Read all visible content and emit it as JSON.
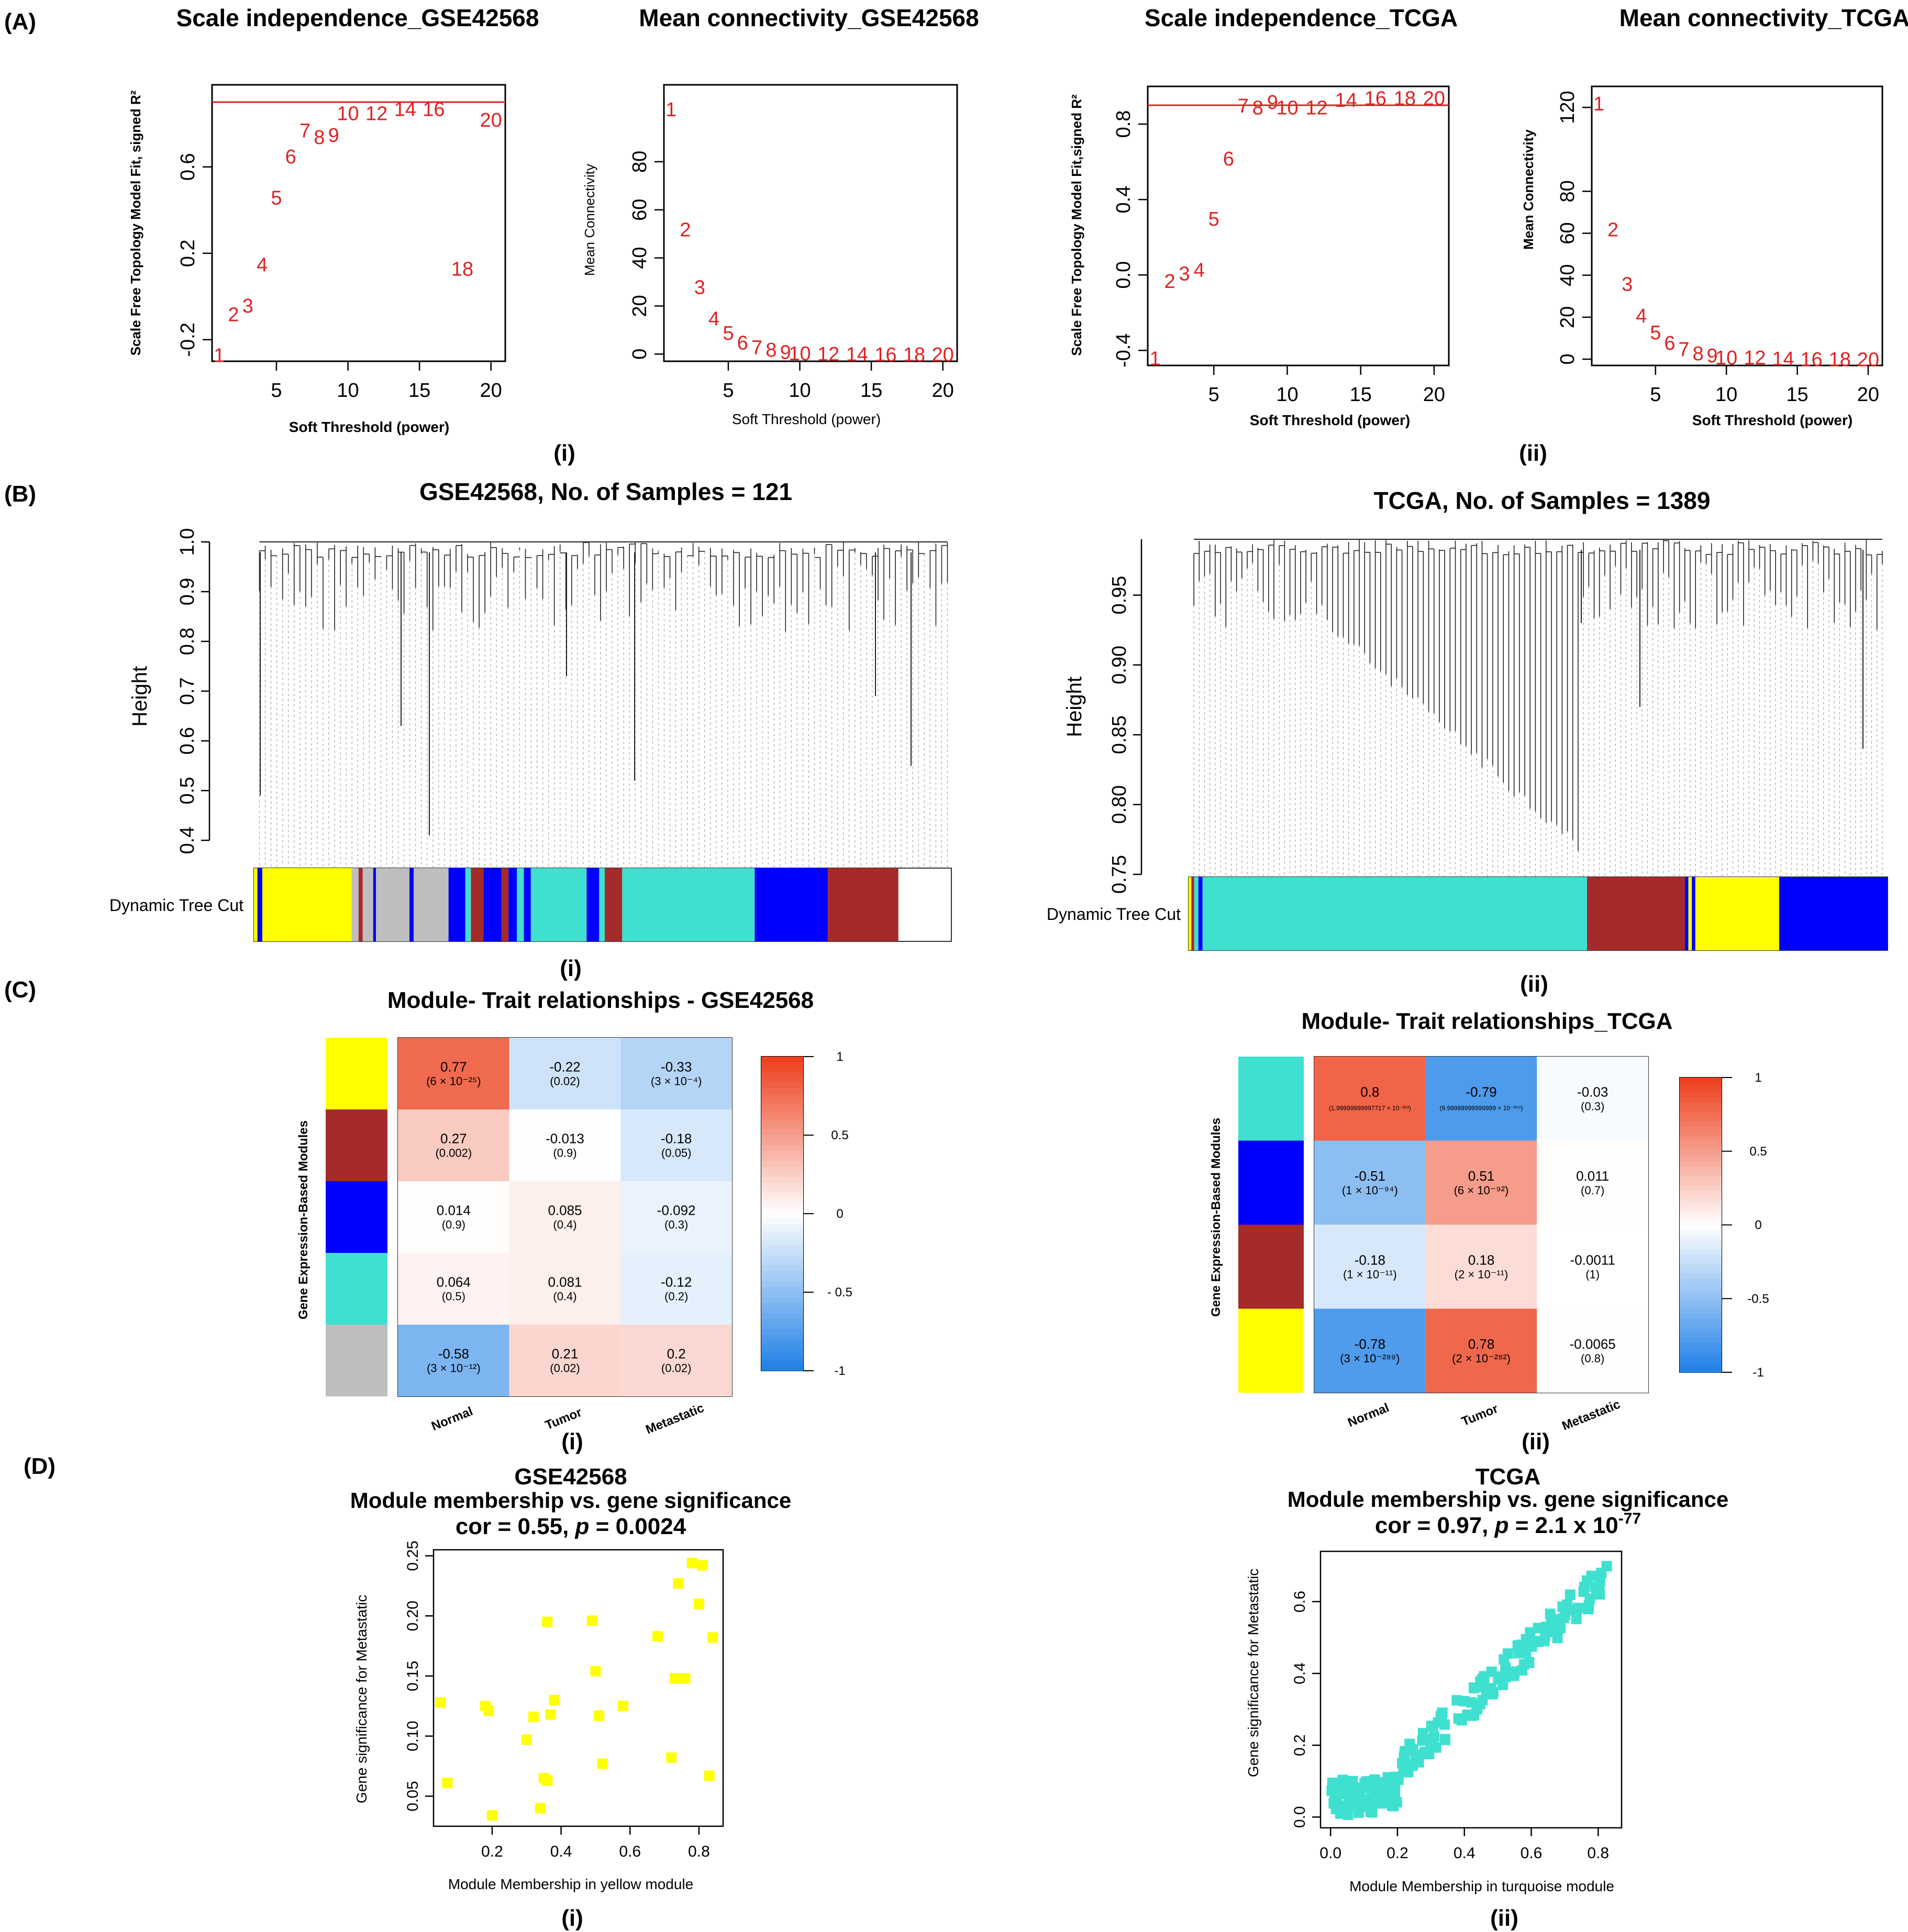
{
  "figure": {
    "panel_letters": [
      "(A)",
      "(B)",
      "(C)",
      "(D)"
    ],
    "subpanel_labels": [
      "(i)",
      "(ii)"
    ]
  },
  "colors": {
    "red": "#dd2222",
    "yellow": "#ffff00",
    "brown": "#a52a2a",
    "blue": "#0000ff",
    "turquoise": "#40e0d0",
    "grey": "#bebebe",
    "heat_neg": "#1f7fe6",
    "heat_mid": "#ffffff",
    "heat_pos": "#ec3d1a"
  },
  "chart_data": [
    {
      "id": "A_i_scale",
      "type": "scatter",
      "title": "Scale independence_GSE42568",
      "xlabel": "Soft Threshold (power)",
      "ylabel": "Scale Free Topology Model Fit, signed R²",
      "xticks": [
        "5",
        "10",
        "15",
        "20"
      ],
      "yticks": [
        "-0.2",
        "0.2",
        "0.6"
      ],
      "xlim": [
        0.5,
        21
      ],
      "ylim": [
        -0.3,
        0.98
      ],
      "hline": 0.9,
      "x": [
        1,
        2,
        3,
        4,
        5,
        6,
        7,
        8,
        9,
        10,
        12,
        14,
        16,
        18,
        20
      ],
      "y": [
        -0.27,
        -0.08,
        -0.04,
        0.15,
        0.46,
        0.65,
        0.77,
        0.74,
        0.75,
        0.85,
        0.85,
        0.87,
        0.87,
        0.13,
        0.82
      ]
    },
    {
      "id": "A_i_conn",
      "type": "scatter",
      "title": "Mean connectivity_GSE42568",
      "xlabel": "Soft Threshold (power)",
      "ylabel": "Mean Connectivity",
      "xticks": [
        "5",
        "10",
        "15",
        "20"
      ],
      "yticks": [
        "0",
        "20",
        "40",
        "60",
        "80"
      ],
      "xlim": [
        0.5,
        21
      ],
      "ylim": [
        -3,
        112
      ],
      "x": [
        1,
        2,
        3,
        4,
        5,
        6,
        7,
        8,
        9,
        10,
        12,
        14,
        16,
        18,
        20
      ],
      "y": [
        102,
        52,
        28,
        15,
        9,
        5,
        3,
        2,
        1,
        0.5,
        0.3,
        0.2,
        0.1,
        0.1,
        0.1
      ]
    },
    {
      "id": "A_ii_scale",
      "type": "scatter",
      "title": "Scale independence_TCGA",
      "xlabel": "Soft Threshold (power)",
      "ylabel": "Scale Free Topology Model Fit,signed R²",
      "xticks": [
        "5",
        "10",
        "15",
        "20"
      ],
      "yticks": [
        "-0.4",
        "0.0",
        "0.4",
        "0.8"
      ],
      "xlim": [
        0.5,
        21
      ],
      "ylim": [
        -0.48,
        1.0
      ],
      "hline": 0.9,
      "x": [
        1,
        2,
        3,
        4,
        5,
        6,
        7,
        8,
        9,
        10,
        12,
        14,
        16,
        18,
        20
      ],
      "y": [
        -0.44,
        -0.03,
        0.01,
        0.03,
        0.3,
        0.62,
        0.9,
        0.89,
        0.92,
        0.89,
        0.89,
        0.93,
        0.94,
        0.94,
        0.94
      ]
    },
    {
      "id": "A_ii_conn",
      "type": "scatter",
      "title": "Mean connectivity_TCGA",
      "xlabel": "Soft Threshold (power)",
      "ylabel": "Mean Connectivity",
      "xticks": [
        "5",
        "10",
        "15",
        "20"
      ],
      "yticks": [
        "0",
        "20",
        "40",
        "60",
        "80",
        "120"
      ],
      "ytick_vals": [
        0,
        20,
        40,
        60,
        80,
        120
      ],
      "xlim": [
        0.5,
        21
      ],
      "ylim": [
        -3,
        130
      ],
      "x": [
        1,
        2,
        3,
        4,
        5,
        6,
        7,
        8,
        9,
        10,
        12,
        14,
        16,
        18,
        20
      ],
      "y": [
        122,
        62,
        36,
        21,
        13,
        8,
        5,
        3,
        2,
        1,
        1,
        0.5,
        0.3,
        0.2,
        0.1
      ]
    },
    {
      "id": "B_i_dendro",
      "type": "dendrogram",
      "title": "GSE42568, No. of Samples = 121",
      "ylabel": "Height",
      "yticks": [
        "0.4",
        "0.5",
        "0.6",
        "0.7",
        "0.8",
        "0.9",
        "1.0"
      ],
      "ylim": [
        0.4,
        1.0
      ],
      "color_bar_label": "Dynamic Tree Cut",
      "color_bar_segments": [
        {
          "color": "yellow",
          "width": 0.005
        },
        {
          "color": "blue",
          "width": 0.007
        },
        {
          "color": "yellow",
          "width": 0.128
        },
        {
          "color": "grey",
          "width": 0.01
        },
        {
          "color": "brown",
          "width": 0.006
        },
        {
          "color": "grey",
          "width": 0.015
        },
        {
          "color": "blue",
          "width": 0.004
        },
        {
          "color": "grey",
          "width": 0.048
        },
        {
          "color": "blue",
          "width": 0.006
        },
        {
          "color": "grey",
          "width": 0.05
        },
        {
          "color": "blue",
          "width": 0.024
        },
        {
          "color": "turquoise",
          "width": 0.008
        },
        {
          "color": "brown",
          "width": 0.018
        },
        {
          "color": "blue",
          "width": 0.026
        },
        {
          "color": "brown",
          "width": 0.01
        },
        {
          "color": "blue",
          "width": 0.012
        },
        {
          "color": "turquoise",
          "width": 0.01
        },
        {
          "color": "blue",
          "width": 0.01
        },
        {
          "color": "turquoise",
          "width": 0.08
        },
        {
          "color": "blue",
          "width": 0.018
        },
        {
          "color": "turquoise",
          "width": 0.008
        },
        {
          "color": "brown",
          "width": 0.025
        },
        {
          "color": "turquoise",
          "width": 0.19
        },
        {
          "color": "blue",
          "width": 0.105
        },
        {
          "color": "brown",
          "width": 0.101
        }
      ]
    },
    {
      "id": "B_ii_dendro",
      "type": "dendrogram",
      "title": "TCGA, No. of Samples = 1389",
      "ylabel": "Height",
      "yticks": [
        "0.75",
        "0.80",
        "0.85",
        "0.90",
        "0.95"
      ],
      "ylim": [
        0.75,
        0.99
      ],
      "color_bar_label": "Dynamic Tree Cut",
      "color_bar_segments": [
        {
          "color": "yellow",
          "width": 0.004
        },
        {
          "color": "brown",
          "width": 0.004
        },
        {
          "color": "turquoise",
          "width": 0.006
        },
        {
          "color": "blue",
          "width": 0.006
        },
        {
          "color": "turquoise",
          "width": 0.55
        },
        {
          "color": "brown",
          "width": 0.14
        },
        {
          "color": "blue",
          "width": 0.005
        },
        {
          "color": "yellow",
          "width": 0.005
        },
        {
          "color": "blue",
          "width": 0.005
        },
        {
          "color": "yellow",
          "width": 0.12
        },
        {
          "color": "blue",
          "width": 0.155
        }
      ]
    },
    {
      "id": "C_i_heat",
      "type": "heatmap",
      "title": "Module- Trait relationships - GSE42568",
      "ylabel": "Gene Expression-Based Modules",
      "columns": [
        "Normal",
        "Tumor",
        "Metastatic"
      ],
      "row_colors": [
        "yellow",
        "brown",
        "blue",
        "turquoise",
        "grey"
      ],
      "values": [
        [
          0.77,
          -0.22,
          -0.33
        ],
        [
          0.27,
          -0.013,
          -0.18
        ],
        [
          0.014,
          0.085,
          -0.092
        ],
        [
          0.064,
          0.081,
          -0.12
        ],
        [
          -0.58,
          0.21,
          0.2
        ]
      ],
      "labels": [
        [
          "0.77",
          "-0.22",
          "-0.33"
        ],
        [
          "0.27",
          "-0.013",
          "-0.18"
        ],
        [
          "0.014",
          "0.085",
          "-0.092"
        ],
        [
          "0.064",
          "0.081",
          "-0.12"
        ],
        [
          "-0.58",
          "0.21",
          "0.2"
        ]
      ],
      "pvalues": [
        [
          "(6 × 10⁻²⁵)",
          "(0.02)",
          "(3 × 10⁻⁴)"
        ],
        [
          "(0.002)",
          "(0.9)",
          "(0.05)"
        ],
        [
          "(0.9)",
          "(0.4)",
          "(0.3)"
        ],
        [
          "(0.5)",
          "(0.4)",
          "(0.2)"
        ],
        [
          "(3 × 10⁻¹²)",
          "(0.02)",
          "(0.02)"
        ]
      ],
      "legend_ticks": [
        "1",
        "0.5",
        "0",
        "- 0.5",
        "-1"
      ],
      "legend_tick_vals": [
        1,
        0.5,
        0,
        -0.5,
        -1
      ]
    },
    {
      "id": "C_ii_heat",
      "type": "heatmap",
      "title": "Module- Trait relationships_TCGA",
      "ylabel": "Gene Expression-Based Modules",
      "columns": [
        "Normal",
        "Tumor",
        "Metastatic"
      ],
      "row_colors": [
        "turquoise",
        "blue",
        "brown",
        "yellow"
      ],
      "values": [
        [
          0.8,
          -0.79,
          -0.03
        ],
        [
          -0.51,
          0.51,
          0.011
        ],
        [
          -0.18,
          0.18,
          -0.0011
        ],
        [
          -0.78,
          0.78,
          -0.0065
        ]
      ],
      "labels": [
        [
          "0.8",
          "-0.79",
          "-0.03"
        ],
        [
          "-0.51",
          "0.51",
          "0.011"
        ],
        [
          "-0.18",
          "0.18",
          "-0.0011"
        ],
        [
          "-0.78",
          "0.78",
          "-0.0065"
        ]
      ],
      "pvalues": [
        [
          "(1.99999999997717 × 10⁻³¹³)",
          "(9.99999999999999 × 10⁻²⁹⁹)",
          "(0.3)"
        ],
        [
          "(1 × 10⁻⁹⁴)",
          "(6 × 10⁻⁹²)",
          "(0.7)"
        ],
        [
          "(1 × 10⁻¹¹)",
          "(2 × 10⁻¹¹)",
          "(1)"
        ],
        [
          "(3 × 10⁻²⁸⁹)",
          "(2 × 10⁻²⁸²)",
          "(0.8)"
        ]
      ],
      "legend_ticks": [
        "1",
        "0.5",
        "0",
        "-0.5",
        "-1"
      ],
      "legend_tick_vals": [
        1,
        0.5,
        0,
        -0.5,
        -1
      ]
    },
    {
      "id": "D_i_scatter",
      "type": "scatter",
      "title": "GSE42568",
      "subtitle": "Module membership vs. gene significance",
      "stat_cor": "cor = 0.55,",
      "stat_p_label": "p",
      "stat_p_value": "= 0.0024",
      "xlabel": "Module Membership in yellow module",
      "ylabel": "Gene significance for Metastatic",
      "xticks": [
        "0.2",
        "0.4",
        "0.6",
        "0.8"
      ],
      "yticks": [
        "0.05",
        "0.10",
        "0.15",
        "0.20",
        "0.25"
      ],
      "xlim": [
        0.03,
        0.87
      ],
      "ylim": [
        0.025,
        0.255
      ],
      "x": [
        0.05,
        0.07,
        0.18,
        0.19,
        0.2,
        0.3,
        0.32,
        0.34,
        0.35,
        0.36,
        0.36,
        0.37,
        0.38,
        0.49,
        0.5,
        0.51,
        0.52,
        0.58,
        0.68,
        0.72,
        0.73,
        0.74,
        0.75,
        0.76,
        0.78,
        0.8,
        0.81,
        0.83,
        0.84
      ],
      "y": [
        0.128,
        0.061,
        0.125,
        0.121,
        0.034,
        0.097,
        0.116,
        0.04,
        0.065,
        0.063,
        0.195,
        0.118,
        0.13,
        0.196,
        0.154,
        0.117,
        0.077,
        0.125,
        0.183,
        0.082,
        0.148,
        0.227,
        0.148,
        0.148,
        0.244,
        0.21,
        0.242,
        0.067,
        0.182
      ]
    },
    {
      "id": "D_ii_scatter",
      "type": "scatter",
      "title": "TCGA",
      "subtitle": "Module membership vs. gene significance",
      "stat_cor": "cor = 0.97,",
      "stat_p_label": "p",
      "stat_p_value": "= 2.1 x 10",
      "stat_p_exp": "-77",
      "xlabel": "Module Membership in turquoise module",
      "ylabel": "Gene significance for Metastatic",
      "xticks": [
        "0.0",
        "0.2",
        "0.4",
        "0.6",
        "0.8"
      ],
      "yticks": [
        "0.0",
        "0.2",
        "0.4",
        "0.6"
      ],
      "xlim": [
        -0.03,
        0.87
      ],
      "ylim": [
        -0.03,
        0.74
      ]
    }
  ]
}
